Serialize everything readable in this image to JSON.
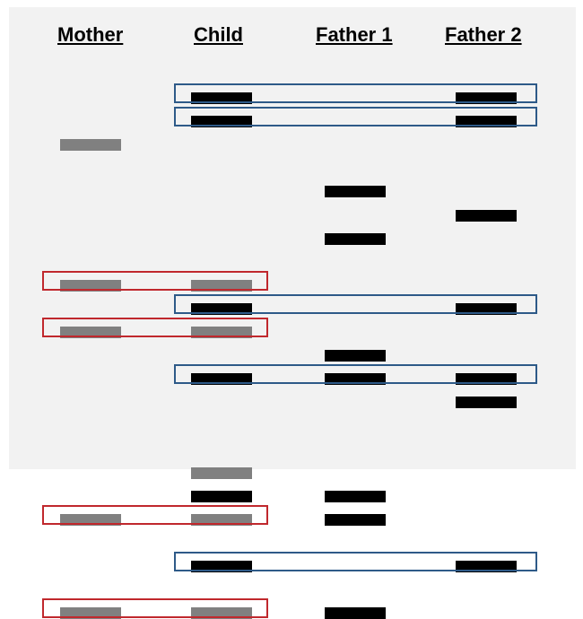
{
  "headers": {
    "mother": "Mother",
    "child": "Child",
    "father1": "Father 1",
    "father2": "Father 2"
  },
  "colors": {
    "background": "#f2f2f2",
    "mother_band": "#808080",
    "child_maternal_band": "#808080",
    "dark_band": "#000000",
    "maternal_match_box": "#c0282d",
    "paternal_match_box": "#2e5a88"
  },
  "bands": {
    "mother": [
      1,
      4,
      5,
      9,
      11
    ],
    "child_maternal": [
      4,
      5,
      8,
      9,
      11
    ],
    "child_paternal": [
      0,
      0.5,
      4.5,
      6,
      8.5,
      10
    ],
    "father1": [
      2,
      3,
      5.5,
      6,
      8.5,
      9,
      11
    ],
    "father2": [
      0,
      0.5,
      2.5,
      4.5,
      6,
      6.5,
      10
    ]
  },
  "match_boxes": {
    "maternal": [
      4,
      5,
      9,
      11
    ],
    "paternal": [
      0,
      0.5,
      4.5,
      6,
      10
    ]
  }
}
